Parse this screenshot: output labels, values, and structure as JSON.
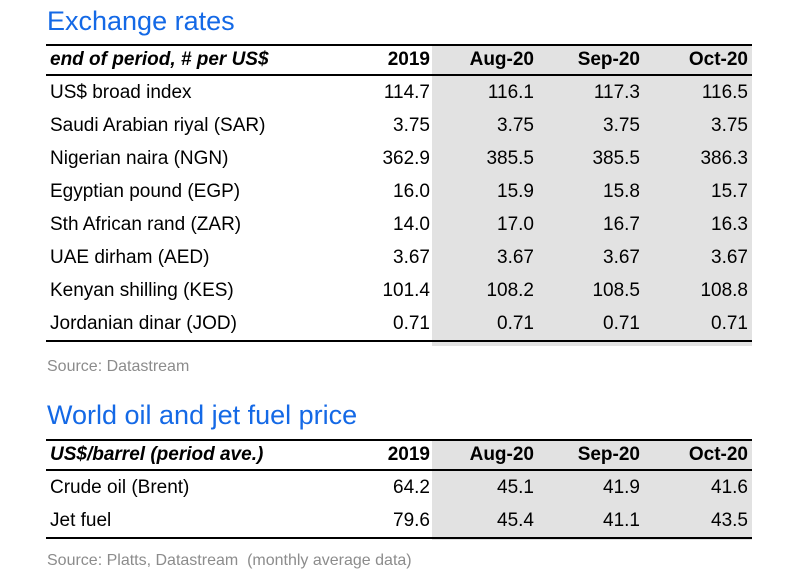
{
  "exchange": {
    "title": "Exchange rates",
    "header": {
      "label": "end of period, # per US$",
      "cols": [
        "2019",
        "Aug-20",
        "Sep-20",
        "Oct-20"
      ]
    },
    "rows": [
      {
        "label": "US$ broad index",
        "values": [
          "114.7",
          "116.1",
          "117.3",
          "116.5"
        ]
      },
      {
        "label": "Saudi Arabian riyal (SAR)",
        "values": [
          "3.75",
          "3.75",
          "3.75",
          "3.75"
        ]
      },
      {
        "label": "Nigerian naira (NGN)",
        "values": [
          "362.9",
          "385.5",
          "385.5",
          "386.3"
        ]
      },
      {
        "label": "Egyptian pound (EGP)",
        "values": [
          "16.0",
          "15.9",
          "15.8",
          "15.7"
        ]
      },
      {
        "label": "Sth African rand (ZAR)",
        "values": [
          "14.0",
          "17.0",
          "16.7",
          "16.3"
        ]
      },
      {
        "label": "UAE dirham (AED)",
        "values": [
          "3.67",
          "3.67",
          "3.67",
          "3.67"
        ]
      },
      {
        "label": "Kenyan shilling (KES)",
        "values": [
          "101.4",
          "108.2",
          "108.5",
          "108.8"
        ]
      },
      {
        "label": "Jordanian dinar (JOD)",
        "values": [
          "0.71",
          "0.71",
          "0.71",
          "0.71"
        ]
      }
    ],
    "source": "Source: Datastream"
  },
  "oil": {
    "title": "World oil and jet fuel price",
    "header": {
      "label": "US$/barrel (period ave.)",
      "cols": [
        "2019",
        "Aug-20",
        "Sep-20",
        "Oct-20"
      ]
    },
    "rows": [
      {
        "label": "Crude oil (Brent)",
        "values": [
          "64.2",
          "45.1",
          "41.9",
          "41.6"
        ]
      },
      {
        "label": "Jet fuel",
        "values": [
          "79.6",
          "45.4",
          "41.1",
          "43.5"
        ]
      }
    ],
    "source": "Source: Platts, Datastream  (monthly average data)"
  },
  "colors": {
    "title": "#1469e6",
    "shade": "#e2e2e2",
    "source": "#8c8c8c"
  }
}
